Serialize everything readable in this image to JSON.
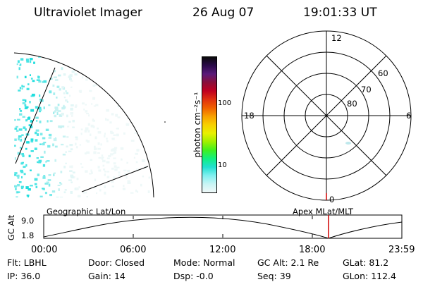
{
  "header": {
    "instrument": "Ultraviolet Imager",
    "date": "26 Aug 07",
    "time": "19:01:33 UT"
  },
  "colorbar": {
    "label": "photon cm⁻²s⁻¹",
    "ticks": [
      "100",
      "10"
    ],
    "colors": [
      "#0a0a0a",
      "#2a0a4a",
      "#5a1a7a",
      "#8a0f3a",
      "#c00020",
      "#e03010",
      "#f06000",
      "#f8a000",
      "#f8d000",
      "#e8f000",
      "#a0f000",
      "#40f020",
      "#10f080",
      "#20e0d0",
      "#80f0f0",
      "#c8f4f4",
      "#f0f8f8"
    ]
  },
  "polar": {
    "labels": {
      "top": "12",
      "bottom": "0",
      "left": "18",
      "right": "6"
    },
    "lat_labels": [
      "60",
      "70",
      "80"
    ]
  },
  "altitude": {
    "axis_label": "GC Alt",
    "y_ticks": [
      "9.0",
      "1.8"
    ],
    "left_title": "Geographic Lat/Lon",
    "right_title": "Apex MLat/MLT",
    "x_ticks": [
      "00:00",
      "06:00",
      "12:00",
      "18:00",
      "23:59"
    ]
  },
  "info": {
    "row1": [
      {
        "key": "Flt:",
        "value": "LBHL"
      },
      {
        "key": "Door:",
        "value": "Closed"
      },
      {
        "key": "Mode:",
        "value": "Normal"
      },
      {
        "key": "GC Alt:",
        "value": "2.1 Re"
      },
      {
        "key": "GLat:",
        "value": "81.2"
      }
    ],
    "row2": [
      {
        "key": "IP:",
        "value": "36.0"
      },
      {
        "key": "Gain:",
        "value": "14"
      },
      {
        "key": "Dsp:",
        "value": "-0.0"
      },
      {
        "key": "Seq:",
        "value": "39"
      },
      {
        "key": "GLon:",
        "value": "112.4"
      }
    ]
  }
}
